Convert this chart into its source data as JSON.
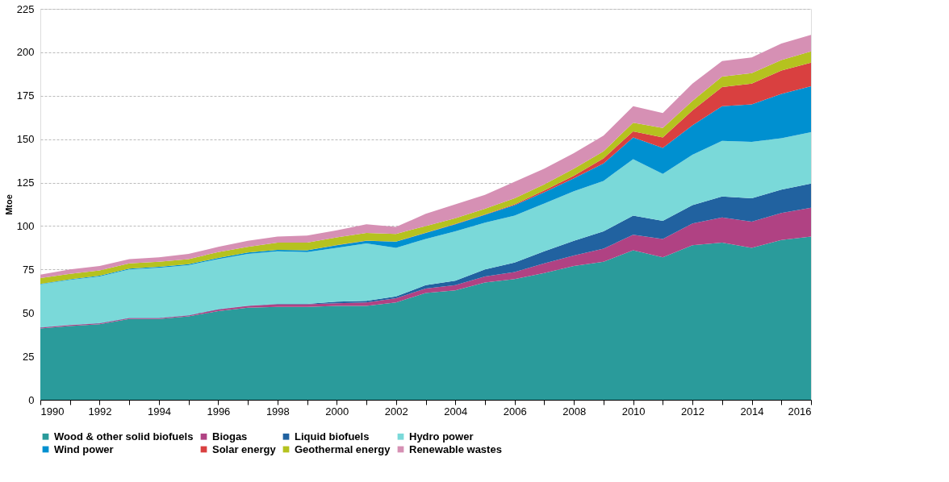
{
  "chart_data": {
    "type": "area",
    "stacked": true,
    "ylabel": "Mtoe",
    "x": [
      1990,
      1991,
      1992,
      1993,
      1994,
      1995,
      1996,
      1997,
      1998,
      1999,
      2000,
      2001,
      2002,
      2003,
      2004,
      2005,
      2006,
      2007,
      2008,
      2009,
      2010,
      2011,
      2012,
      2013,
      2014,
      2015,
      2016
    ],
    "xlim": [
      1990,
      2016
    ],
    "xticks": [
      1990,
      {
        "value": 1991,
        "label": null
      },
      1992,
      {
        "value": 1993,
        "label": null
      },
      1994,
      {
        "value": 1995,
        "label": null
      },
      1996,
      {
        "value": 1997,
        "label": null
      },
      1998,
      {
        "value": 1999,
        "label": null
      },
      2000,
      {
        "value": 2001,
        "label": null
      },
      2002,
      {
        "value": 2003,
        "label": null
      },
      2004,
      {
        "value": 2005,
        "label": null
      },
      2006,
      {
        "value": 2007,
        "label": null
      },
      2008,
      {
        "value": 2009,
        "label": null
      },
      2010,
      {
        "value": 2011,
        "label": null
      },
      2012,
      {
        "value": 2013,
        "label": null
      },
      2014,
      {
        "value": 2015,
        "label": null
      },
      2016
    ],
    "ylim": [
      0,
      225
    ],
    "yticks": [
      0,
      25,
      50,
      75,
      100,
      125,
      150,
      175,
      200,
      225
    ],
    "grid": "y",
    "legend": "bottom",
    "series": [
      {
        "name": "Wood & other solid biofuels",
        "color": "#2a9b9b",
        "values": [
          41,
          42.5,
          43.5,
          46.5,
          46.5,
          48,
          51,
          53,
          53.5,
          53.5,
          54,
          54,
          56,
          61.5,
          63,
          67.5,
          69.5,
          73,
          77,
          79.5,
          86,
          82,
          89,
          90.5,
          87.5,
          92,
          94
        ]
      },
      {
        "name": "Biogas",
        "color": "#b04283",
        "values": [
          0.5,
          0.5,
          0.5,
          0.5,
          0.5,
          0.5,
          1,
          1,
          1.5,
          1.5,
          1.5,
          2,
          2.5,
          2.5,
          3,
          3.5,
          4,
          5.5,
          6,
          7.5,
          9,
          10.5,
          12.5,
          14.5,
          15,
          15.5,
          16.5
        ]
      },
      {
        "name": "Liquid biofuels",
        "color": "#2162a0",
        "values": [
          0.2,
          0.2,
          0.2,
          0.2,
          0.2,
          0.2,
          0.2,
          0.2,
          0.2,
          0.2,
          1,
          1,
          1,
          2,
          2.5,
          4,
          5.5,
          7,
          8.5,
          10,
          11,
          10.5,
          10.5,
          12,
          13.5,
          13.5,
          14
        ]
      },
      {
        "name": "Hydro power",
        "color": "#7ad9d9",
        "values": [
          24.8,
          25.8,
          26.8,
          27.8,
          28.8,
          28.8,
          28.8,
          29.8,
          30.3,
          29.8,
          31,
          33,
          28,
          26.5,
          28.5,
          27,
          27,
          27.5,
          28.5,
          29,
          32.5,
          27,
          29,
          32,
          32.5,
          29.5,
          29.5
        ]
      },
      {
        "name": "Wind power",
        "color": "#0090d0",
        "values": [
          0.2,
          0.3,
          0.4,
          0.5,
          0.5,
          0.5,
          0.7,
          0.8,
          0.8,
          1,
          1.5,
          1.5,
          3.5,
          3.5,
          4,
          4.5,
          6,
          6.5,
          7.5,
          10,
          12.5,
          15,
          17,
          20,
          21.5,
          25.5,
          26.5
        ]
      },
      {
        "name": "Solar energy",
        "color": "#d94040",
        "values": [
          0,
          0,
          0,
          0,
          0,
          0,
          0,
          0,
          0,
          0,
          0.1,
          0.1,
          0.1,
          0.2,
          0.2,
          0.2,
          0.5,
          1,
          1.5,
          3,
          3.5,
          6,
          8.5,
          11,
          12,
          13.5,
          13.5
        ]
      },
      {
        "name": "Geothermal energy",
        "color": "#b5c21f",
        "values": [
          3.3,
          3.2,
          3.1,
          3,
          3,
          3,
          3.3,
          3.2,
          4.2,
          4.5,
          4.4,
          4.4,
          4.4,
          3.8,
          3.3,
          3.3,
          3.5,
          3.5,
          4,
          4,
          5,
          5.5,
          5.5,
          6,
          6,
          6,
          6.5
        ]
      },
      {
        "name": "Renewable wastes",
        "color": "#d690b4",
        "values": [
          2,
          2.5,
          2.5,
          2.5,
          2.5,
          3,
          3,
          3.5,
          3.5,
          4,
          4,
          5,
          4,
          7,
          8,
          8,
          9.5,
          9,
          9,
          9,
          9.5,
          8.5,
          10,
          9,
          9,
          9.5,
          9.5
        ]
      }
    ]
  }
}
